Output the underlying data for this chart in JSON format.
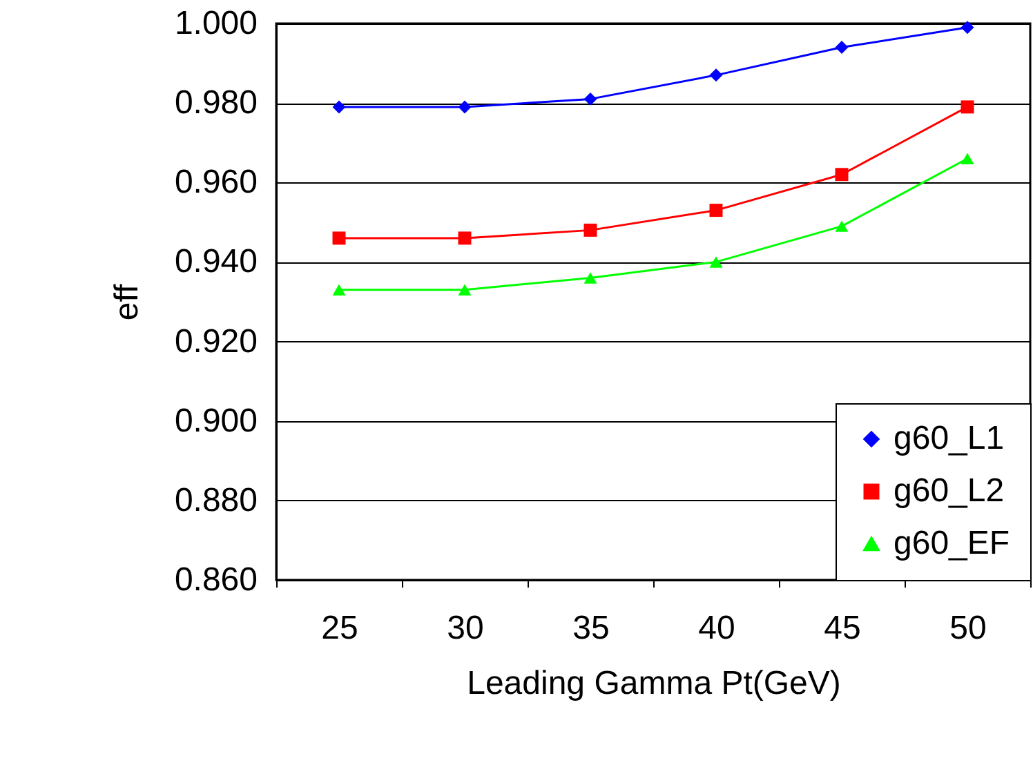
{
  "chart_data": {
    "type": "line",
    "xlabel": "Leading Gamma Pt(GeV)",
    "ylabel": "eff",
    "categories": [
      "25",
      "30",
      "35",
      "40",
      "45",
      "50"
    ],
    "series": [
      {
        "name": "g60_L1",
        "color": "#0000ff",
        "marker": "diamond",
        "values": [
          0.979,
          0.979,
          0.981,
          0.987,
          0.994,
          0.999
        ]
      },
      {
        "name": "g60_L2",
        "color": "#ff0000",
        "marker": "square",
        "values": [
          0.946,
          0.946,
          0.948,
          0.953,
          0.962,
          0.979
        ]
      },
      {
        "name": "g60_EF",
        "color": "#00ff00",
        "marker": "triangle",
        "values": [
          0.933,
          0.933,
          0.936,
          0.94,
          0.949,
          0.966
        ]
      }
    ],
    "ylim": [
      0.86,
      1.0
    ],
    "yticks": [
      {
        "value": 0.86,
        "label": "0.860"
      },
      {
        "value": 0.88,
        "label": "0.880"
      },
      {
        "value": 0.9,
        "label": "0.900"
      },
      {
        "value": 0.92,
        "label": "0.920"
      },
      {
        "value": 0.94,
        "label": "0.940"
      },
      {
        "value": 0.96,
        "label": "0.960"
      },
      {
        "value": 0.98,
        "label": "0.980"
      },
      {
        "value": 1.0,
        "label": "1.000"
      }
    ],
    "grid": "y",
    "legend": "bottom right"
  }
}
